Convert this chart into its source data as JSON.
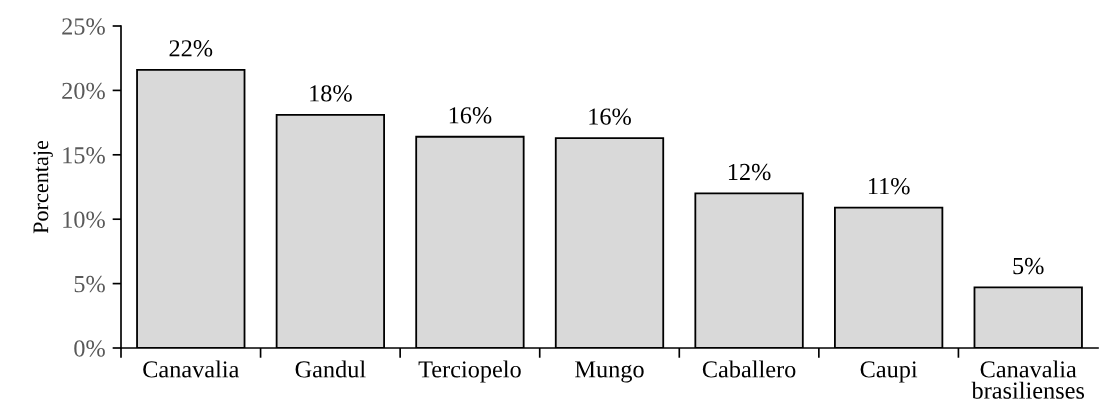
{
  "chart_data": {
    "type": "bar",
    "ylabel": "Porcentaje",
    "categories": [
      "Canavalia",
      "Gandul",
      "Terciopelo",
      "Mungo",
      "Caballero",
      "Caupi",
      "Canavalia\nbrasilienses"
    ],
    "values": [
      21.6,
      18.1,
      16.4,
      16.3,
      12.0,
      10.9,
      4.7
    ],
    "color": "#d9d9d9",
    "value_labels": [
      "22%",
      "18%",
      "16%",
      "16%",
      "12%",
      "11%",
      "5%"
    ],
    "ylim": [
      0,
      25
    ],
    "yticks": [
      {
        "value": 0,
        "label": "0%"
      },
      {
        "value": 5,
        "label": "5%"
      },
      {
        "value": 10,
        "label": "10%"
      },
      {
        "value": 15,
        "label": "15%"
      },
      {
        "value": 20,
        "label": "20%"
      },
      {
        "value": 25,
        "label": "25%"
      }
    ],
    "grid": false
  }
}
